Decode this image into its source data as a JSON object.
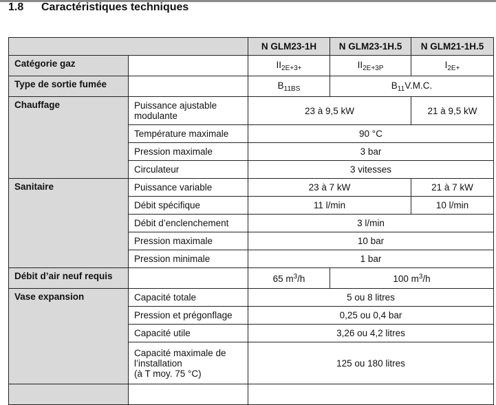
{
  "section": {
    "number": "1.8",
    "title": "Caractéristiques techniques"
  },
  "table": {
    "models": [
      "N GLM23-1H",
      "N GLM23-1H.5",
      "N GLM21-1H.5"
    ],
    "categorie_gaz": {
      "label": "Catégorie gaz",
      "values": [
        {
          "main": "II",
          "sub": "2E+3+"
        },
        {
          "main": "II",
          "sub": "2E+3P"
        },
        {
          "main": "I",
          "sub": "2E+"
        }
      ]
    },
    "sortie_fumee": {
      "label": "Type de sortie fumée",
      "v1": {
        "main": "B",
        "sub": "11BS"
      },
      "v2": {
        "main": "B",
        "sub": "11",
        "suffix": "V.M.C."
      }
    },
    "chauffage": {
      "label": "Chauffage",
      "rows": [
        {
          "label": "Puissance ajustable modulante",
          "v1": "23 à 9,5 kW",
          "v2": "21 à 9,5 kW"
        },
        {
          "label": "Température maximale",
          "v": "90 °C"
        },
        {
          "label": "Pression maximale",
          "v": "3 bar"
        },
        {
          "label": "Circulateur",
          "v": "3 vitesses"
        }
      ]
    },
    "sanitaire": {
      "label": "Sanitaire",
      "rows": [
        {
          "label": "Puissance variable",
          "v1": "23 à 7 kW",
          "v2": "21 à 7 kW"
        },
        {
          "label": "Débit spécifique",
          "v1": "11 l/min",
          "v2": "10 l/min"
        },
        {
          "label": "Débit d’enclenchement",
          "v": "3 l/min"
        },
        {
          "label": "Pression maximale",
          "v": "10 bar"
        },
        {
          "label": "Pression minimale",
          "v": "1 bar"
        }
      ]
    },
    "debit_air": {
      "label": "Débit d’air neuf requis",
      "v1": {
        "main": "65 m",
        "sup": "3",
        "suffix": "/h"
      },
      "v2": {
        "main": "100 m",
        "sup": "3",
        "suffix": "/h"
      }
    },
    "vase": {
      "label": "Vase expansion",
      "rows": [
        {
          "label": "Capacité totale",
          "v": "5 ou 8 litres"
        },
        {
          "label": "Pression et prégonflage",
          "v": "0,25 ou 0,4 bar"
        },
        {
          "label": "Capacité utile",
          "v": "3,26 ou 4,2 litres"
        },
        {
          "label_lines": [
            "Capacité maximale de",
            "l’installation",
            "(à T moy. 75 °C)"
          ],
          "v": "125 ou 180 litres"
        }
      ]
    }
  }
}
